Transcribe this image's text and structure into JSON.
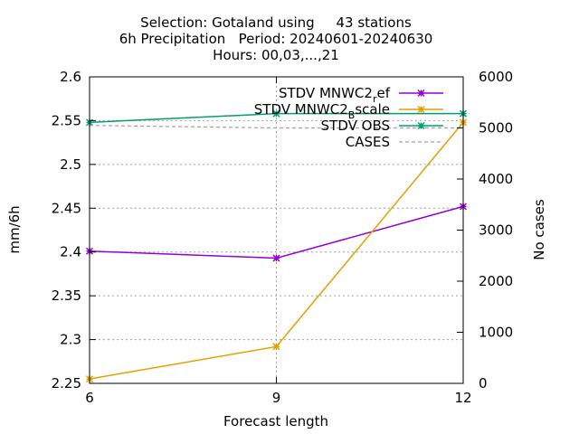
{
  "chart_data": {
    "type": "line",
    "title_lines": [
      "Selection: Gotaland using     43 stations",
      "6h Precipitation   Period: 20240601-20240630",
      "Hours: 00,03,...,21"
    ],
    "xlabel": "Forecast length",
    "ylabel": "mm/6h",
    "y2label": "No cases",
    "x": [
      6,
      9,
      12
    ],
    "xlim": [
      6,
      12
    ],
    "xticks": [
      "6",
      "9",
      "12"
    ],
    "ylim": [
      2.25,
      2.6
    ],
    "yticks": [
      "2.25",
      "2.3",
      "2.35",
      "2.4",
      "2.45",
      "2.5",
      "2.55",
      "2.6"
    ],
    "y2lim": [
      0,
      6000
    ],
    "y2ticks": [
      "0",
      "1000",
      "2000",
      "3000",
      "4000",
      "5000",
      "6000"
    ],
    "grid": true,
    "legend_position": "top-right",
    "series": [
      {
        "name": "STDV MNWC2_ref",
        "label_main": "STDV MNWC2",
        "label_sub": "r",
        "label_rest": "ef",
        "axis": "y",
        "color": "#9400d3",
        "marker": "x",
        "values": [
          2.401,
          2.393,
          2.452
        ]
      },
      {
        "name": "STDV MNWC2_Bscale",
        "label_main": "STDV MNWC2",
        "label_sub": "B",
        "label_rest": "scale",
        "axis": "y",
        "color": "#e69f00",
        "marker": "x",
        "values": [
          2.255,
          2.292,
          2.548
        ]
      },
      {
        "name": "STDV OBS",
        "label_main": "STDV OBS",
        "label_sub": "",
        "label_rest": "",
        "axis": "y",
        "color": "#009e73",
        "marker": "x",
        "values": [
          2.548,
          2.558,
          2.558
        ]
      },
      {
        "name": "CASES",
        "label_main": "CASES",
        "label_sub": "",
        "label_rest": "",
        "axis": "y2",
        "color": "#a0a0a0",
        "dashed": true,
        "values": [
          5050,
          5000,
          5000
        ]
      }
    ]
  }
}
